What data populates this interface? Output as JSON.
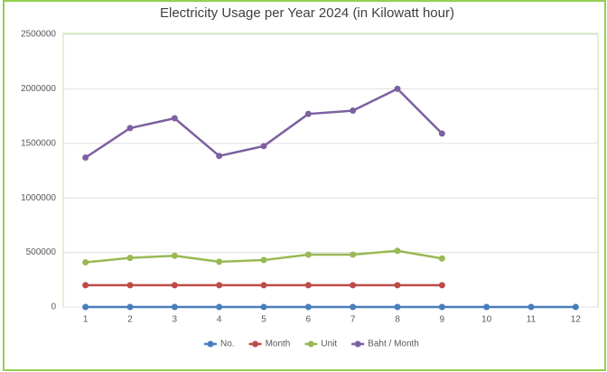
{
  "chart_data": {
    "type": "line",
    "title": "Electricity Usage per Year 2024 (in Kilowatt hour)",
    "categories": [
      "1",
      "2",
      "3",
      "4",
      "5",
      "6",
      "7",
      "8",
      "9",
      "10",
      "11",
      "12"
    ],
    "series": [
      {
        "name": "No.",
        "color": "#4a7ebb",
        "values": [
          0,
          0,
          0,
          0,
          0,
          0,
          0,
          0,
          0,
          0,
          0,
          0
        ]
      },
      {
        "name": "Month",
        "color": "#be4b48",
        "values": [
          200000,
          200000,
          200000,
          200000,
          200000,
          200000,
          200000,
          200000,
          200000,
          null,
          null,
          null
        ]
      },
      {
        "name": "Unit",
        "color": "#98b954",
        "values": [
          410000,
          450000,
          470000,
          415000,
          430000,
          480000,
          480000,
          515000,
          445000,
          null,
          null,
          null
        ]
      },
      {
        "name": "Baht / Month",
        "color": "#7d60a0",
        "values": [
          1370000,
          1640000,
          1730000,
          1385000,
          1475000,
          1770000,
          1800000,
          2000000,
          1590000,
          null,
          null,
          null
        ]
      }
    ],
    "ylim": [
      0,
      2500000
    ],
    "yticks": [
      0,
      500000,
      1000000,
      1500000,
      2000000,
      2500000
    ],
    "grid": true,
    "legend": "bottom"
  }
}
